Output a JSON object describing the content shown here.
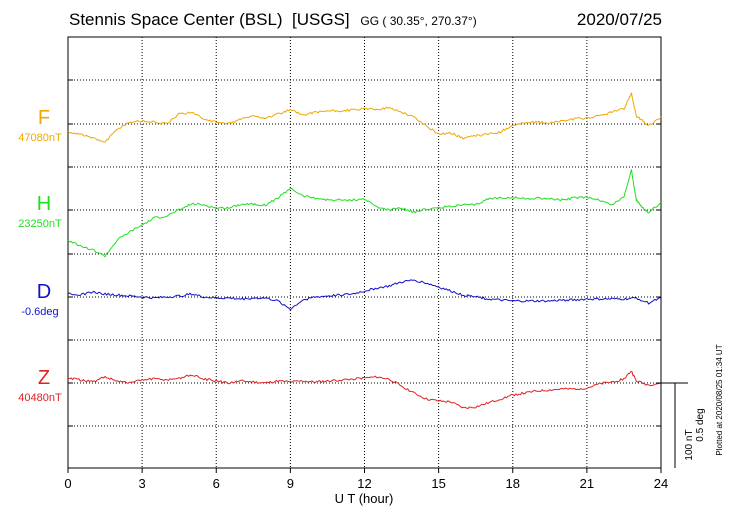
{
  "header": {
    "station": "Stennis Space Center (BSL)",
    "agency": "[USGS]",
    "coords": "GG ( 30.35°, 270.37°)",
    "date": "2020/07/25"
  },
  "chart_data": {
    "type": "line",
    "xlabel": "U T (hour)",
    "xlim": [
      0,
      24
    ],
    "xticks": [
      0,
      3,
      6,
      9,
      12,
      15,
      18,
      21,
      24
    ],
    "scale_bar": {
      "nT": "100 nT",
      "deg": "0.5 deg"
    },
    "plotted_note": "Plotted at 2020/08/25 01:34 UT",
    "series": [
      {
        "key": "F",
        "label": "F",
        "baseline_label": "47080nT",
        "color": "#f0a800",
        "x": [
          0,
          0.5,
          1,
          1.5,
          2,
          2.5,
          3,
          3.5,
          4,
          4.5,
          5,
          5.5,
          6,
          6.5,
          7,
          7.5,
          8,
          8.5,
          9,
          9.5,
          10,
          10.5,
          11,
          11.5,
          12,
          12.5,
          13,
          13.5,
          14,
          14.5,
          15,
          15.5,
          16,
          16.5,
          17,
          17.5,
          18,
          18.5,
          19,
          19.5,
          20,
          20.5,
          21,
          21.5,
          22,
          22.5,
          22.8,
          23,
          23.2,
          23.5,
          24
        ],
        "offset": [
          -8,
          -10,
          -14,
          -18,
          -5,
          2,
          3,
          2,
          0,
          10,
          12,
          5,
          2,
          0,
          5,
          8,
          6,
          10,
          14,
          9,
          12,
          13,
          13,
          14,
          15,
          15,
          16,
          12,
          7,
          -2,
          -10,
          -9,
          -14,
          -12,
          -10,
          -8,
          -1,
          1,
          2,
          1,
          3,
          5,
          6,
          8,
          12,
          15,
          31,
          8,
          4,
          -2,
          7
        ]
      },
      {
        "key": "H",
        "label": "H",
        "baseline_label": "23250nT",
        "color": "#22dd22",
        "x": [
          0,
          0.5,
          1,
          1.5,
          2,
          2.5,
          3,
          3.5,
          4,
          4.5,
          5,
          5.5,
          6,
          6.5,
          7,
          7.5,
          8,
          8.5,
          9,
          9.5,
          10,
          10.5,
          11,
          11.5,
          12,
          12.5,
          13,
          13.5,
          14,
          14.5,
          15,
          15.5,
          16,
          16.5,
          17,
          17.5,
          18,
          18.5,
          19,
          19.5,
          20,
          20.5,
          21,
          21.5,
          22,
          22.5,
          22.8,
          23,
          23.2,
          23.5,
          24
        ],
        "offset": [
          -30,
          -36,
          -40,
          -46,
          -30,
          -22,
          -15,
          -8,
          -6,
          0,
          6,
          5,
          2,
          2,
          6,
          6,
          5,
          12,
          22,
          14,
          12,
          10,
          10,
          10,
          11,
          3,
          0,
          2,
          -2,
          1,
          2,
          4,
          5,
          5,
          11,
          12,
          13,
          11,
          12,
          11,
          10,
          12,
          13,
          10,
          5,
          13,
          40,
          10,
          4,
          -3,
          8
        ]
      },
      {
        "key": "D",
        "label": "D",
        "baseline_label": "-0.6deg",
        "color": "#1111cc",
        "x": [
          0,
          0.5,
          1,
          1.5,
          2,
          2.5,
          3,
          3.5,
          4,
          4.5,
          5,
          5.5,
          6,
          6.5,
          7,
          7.5,
          8,
          8.5,
          9,
          9.5,
          10,
          10.5,
          11,
          11.5,
          12,
          12.5,
          13,
          13.5,
          14,
          14.5,
          15,
          15.5,
          16,
          16.5,
          17,
          17.5,
          18,
          18.5,
          19,
          19.5,
          20,
          20.5,
          21,
          21.5,
          22,
          22.5,
          23,
          23.5,
          24
        ],
        "offset": [
          4,
          2,
          5,
          3,
          2,
          1,
          0,
          -1,
          0,
          1,
          3,
          0,
          -1,
          -1,
          -2,
          -1,
          -1,
          -4,
          -12,
          -3,
          0,
          1,
          2,
          3,
          6,
          9,
          11,
          15,
          17,
          14,
          10,
          6,
          2,
          0,
          -2,
          -3,
          -4,
          -4,
          -4,
          -4,
          -3,
          -3,
          -2,
          -2,
          -2,
          -2,
          -1,
          -6,
          -1
        ]
      },
      {
        "key": "Z",
        "label": "Z",
        "baseline_label": "40480nT",
        "color": "#dd2222",
        "x": [
          0,
          0.5,
          1,
          1.5,
          2,
          2.5,
          3,
          3.5,
          4,
          4.5,
          5,
          5.5,
          6,
          6.5,
          7,
          7.5,
          8,
          8.5,
          9,
          9.5,
          10,
          10.5,
          11,
          11.5,
          12,
          12.5,
          13,
          13.5,
          14,
          14.5,
          15,
          15.5,
          16,
          16.5,
          17,
          17.5,
          18,
          18.5,
          19,
          19.5,
          20,
          20.5,
          21,
          21.5,
          22,
          22.5,
          22.8,
          23,
          23.5,
          24
        ],
        "offset": [
          5,
          3,
          1,
          6,
          2,
          0,
          3,
          4,
          3,
          5,
          8,
          4,
          2,
          0,
          2,
          1,
          0,
          2,
          1,
          2,
          1,
          2,
          3,
          4,
          5,
          6,
          4,
          -3,
          -10,
          -16,
          -18,
          -19,
          -25,
          -24,
          -20,
          -16,
          -12,
          -10,
          -8,
          -7,
          -6,
          -6,
          -5,
          -1,
          1,
          4,
          12,
          2,
          -2,
          0
        ]
      }
    ]
  }
}
